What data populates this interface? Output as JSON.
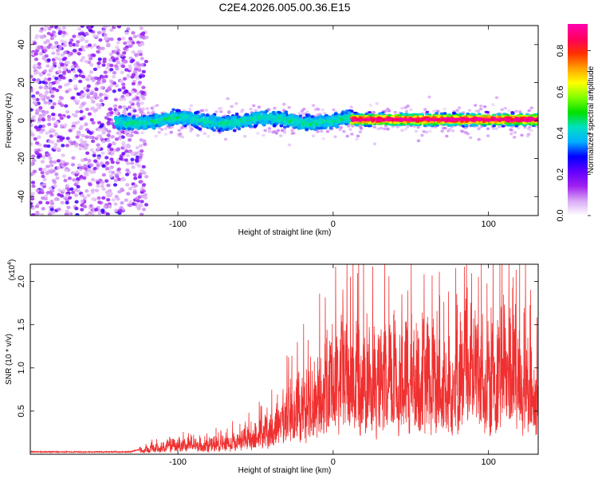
{
  "title": "C2E4.2026.005.00.36.E15",
  "chart_data": [
    {
      "type": "heatmap",
      "xlabel": "Height of straight line (km)",
      "ylabel": "Frequency (Hz)",
      "xlim": [
        -195,
        132
      ],
      "ylim": [
        -50,
        50
      ],
      "xticks": [
        -100,
        0,
        100
      ],
      "yticks": [
        -40,
        -20,
        0,
        20,
        40
      ],
      "colorbar": {
        "label": "Normalized spectral amplitude",
        "range": [
          0,
          0.93
        ],
        "ticks": [
          "0.0",
          "0.2",
          "0.4",
          "0.6",
          "0.8"
        ],
        "colors": [
          "#ffffff",
          "#d9a8f5",
          "#a020f0",
          "#6000ff",
          "#0000ff",
          "#00b0ff",
          "#00e0c0",
          "#00e000",
          "#80ff00",
          "#ffff00",
          "#ffa000",
          "#ff3000",
          "#ff0060",
          "#ff00b0"
        ]
      },
      "bands": [
        {
          "name": "noise",
          "x_range": [
            -195,
            -120
          ],
          "freq_spread_hz": 50,
          "peak_amplitude": 0.12
        },
        {
          "name": "transition",
          "x_range": [
            -140,
            12
          ],
          "freq_center_hz": 0,
          "freq_spread_hz": 8,
          "peak_amplitude": 0.3
        },
        {
          "name": "tone",
          "x_range": [
            12,
            132
          ],
          "freq_center_hz": 0.5,
          "freq_spread_hz": 3,
          "peak_amplitude": 0.93
        }
      ]
    },
    {
      "type": "line",
      "xlabel": "Height of straight line (km)",
      "ylabel": "SNR (10 * v/v)",
      "y_multiplier": "(x10",
      "y_multiplier_exp": "4",
      "xlim": [
        -195,
        132
      ],
      "ylim": [
        0,
        2.2
      ],
      "xticks": [
        -100,
        0,
        100
      ],
      "yticks": [
        "0.5",
        "1.0",
        "1.5",
        "2.0"
      ],
      "line_color": "#f03030",
      "envelope": [
        {
          "x": -195,
          "y": 0.02
        },
        {
          "x": -130,
          "y": 0.02
        },
        {
          "x": -120,
          "y": 0.08
        },
        {
          "x": -100,
          "y": 0.16
        },
        {
          "x": -80,
          "y": 0.14
        },
        {
          "x": -60,
          "y": 0.22
        },
        {
          "x": -40,
          "y": 0.4
        },
        {
          "x": -25,
          "y": 0.75
        },
        {
          "x": -10,
          "y": 0.9
        },
        {
          "x": 0,
          "y": 1.2
        },
        {
          "x": 15,
          "y": 1.35
        },
        {
          "x": 30,
          "y": 1.15
        },
        {
          "x": 45,
          "y": 1.25
        },
        {
          "x": 60,
          "y": 1.3
        },
        {
          "x": 75,
          "y": 1.1
        },
        {
          "x": 85,
          "y": 1.45
        },
        {
          "x": 100,
          "y": 1.2
        },
        {
          "x": 112,
          "y": 1.6
        },
        {
          "x": 120,
          "y": 1.25
        },
        {
          "x": 132,
          "y": 0.8
        }
      ]
    }
  ]
}
